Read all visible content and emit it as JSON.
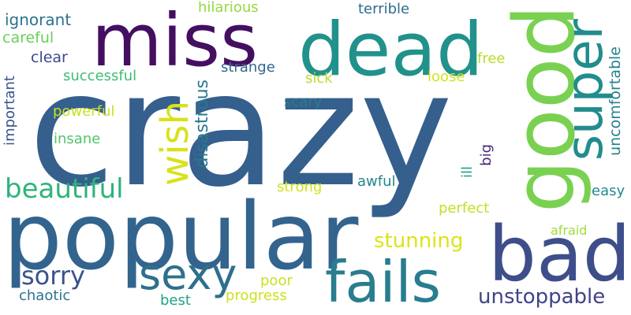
{
  "words": [
    {
      "id": "crazy",
      "text": "crazy",
      "color": "#355f8d"
    },
    {
      "id": "popular",
      "text": "popular",
      "color": "#32648e"
    },
    {
      "id": "bad",
      "text": "bad",
      "color": "#3d4e8a"
    },
    {
      "id": "good",
      "text": "good",
      "color": "#7ad151"
    },
    {
      "id": "miss",
      "text": "miss",
      "color": "#440f60"
    },
    {
      "id": "dead",
      "text": "dead",
      "color": "#21918c"
    },
    {
      "id": "fails",
      "text": "fails",
      "color": "#287d8e"
    },
    {
      "id": "super",
      "text": "super",
      "color": "#228c8d"
    },
    {
      "id": "sexy",
      "text": "sexy",
      "color": "#2d708e"
    },
    {
      "id": "wish",
      "text": "wish",
      "color": "#d8e219"
    },
    {
      "id": "beautiful",
      "text": "beautiful",
      "color": "#2eb37c"
    },
    {
      "id": "sorry",
      "text": "sorry",
      "color": "#3b528b"
    },
    {
      "id": "stunning",
      "text": "stunning",
      "color": "#dde318"
    },
    {
      "id": "unstoppable",
      "text": "unstoppable",
      "color": "#414487"
    },
    {
      "id": "disastrous",
      "text": "disastrous",
      "color": "#2a788e"
    },
    {
      "id": "uncomfortable",
      "text": "uncomfortable",
      "color": "#26828e"
    },
    {
      "id": "ignorant",
      "text": "ignorant",
      "color": "#2c728e"
    },
    {
      "id": "careful",
      "text": "careful",
      "color": "#6ccd5a"
    },
    {
      "id": "clear",
      "text": "clear",
      "color": "#3e4989"
    },
    {
      "id": "hilarious",
      "text": "hilarious",
      "color": "#95d840"
    },
    {
      "id": "terrible",
      "text": "terrible",
      "color": "#2f6c8e"
    },
    {
      "id": "successful",
      "text": "successful",
      "color": "#3fbc73"
    },
    {
      "id": "strange",
      "text": "strange",
      "color": "#31668e"
    },
    {
      "id": "free",
      "text": "free",
      "color": "#b5de2b"
    },
    {
      "id": "sick",
      "text": "sick",
      "color": "#b8de29"
    },
    {
      "id": "loose",
      "text": "loose",
      "color": "#d5e21a"
    },
    {
      "id": "important",
      "text": "important",
      "color": "#39568c"
    },
    {
      "id": "powerful",
      "text": "powerful",
      "color": "#c8e020"
    },
    {
      "id": "scary",
      "text": "scary",
      "color": "#277f8e"
    },
    {
      "id": "insane",
      "text": "insane",
      "color": "#52c569"
    },
    {
      "id": "big",
      "text": "big",
      "color": "#472a7a"
    },
    {
      "id": "ill",
      "text": "ill",
      "color": "#1f9e89"
    },
    {
      "id": "easy",
      "text": "easy",
      "color": "#23898e"
    },
    {
      "id": "strong",
      "text": "strong",
      "color": "#d2e21b"
    },
    {
      "id": "awful",
      "text": "awful",
      "color": "#24878e"
    },
    {
      "id": "perfect",
      "text": "perfect",
      "color": "#c2df23"
    },
    {
      "id": "afraid",
      "text": "afraid",
      "color": "#a0da39"
    },
    {
      "id": "poor",
      "text": "poor",
      "color": "#cae11f"
    },
    {
      "id": "chaotic",
      "text": "chaotic",
      "color": "#2c738e"
    },
    {
      "id": "best",
      "text": "best",
      "color": "#20a386"
    },
    {
      "id": "progress",
      "text": "progress",
      "color": "#cde11d"
    }
  ]
}
